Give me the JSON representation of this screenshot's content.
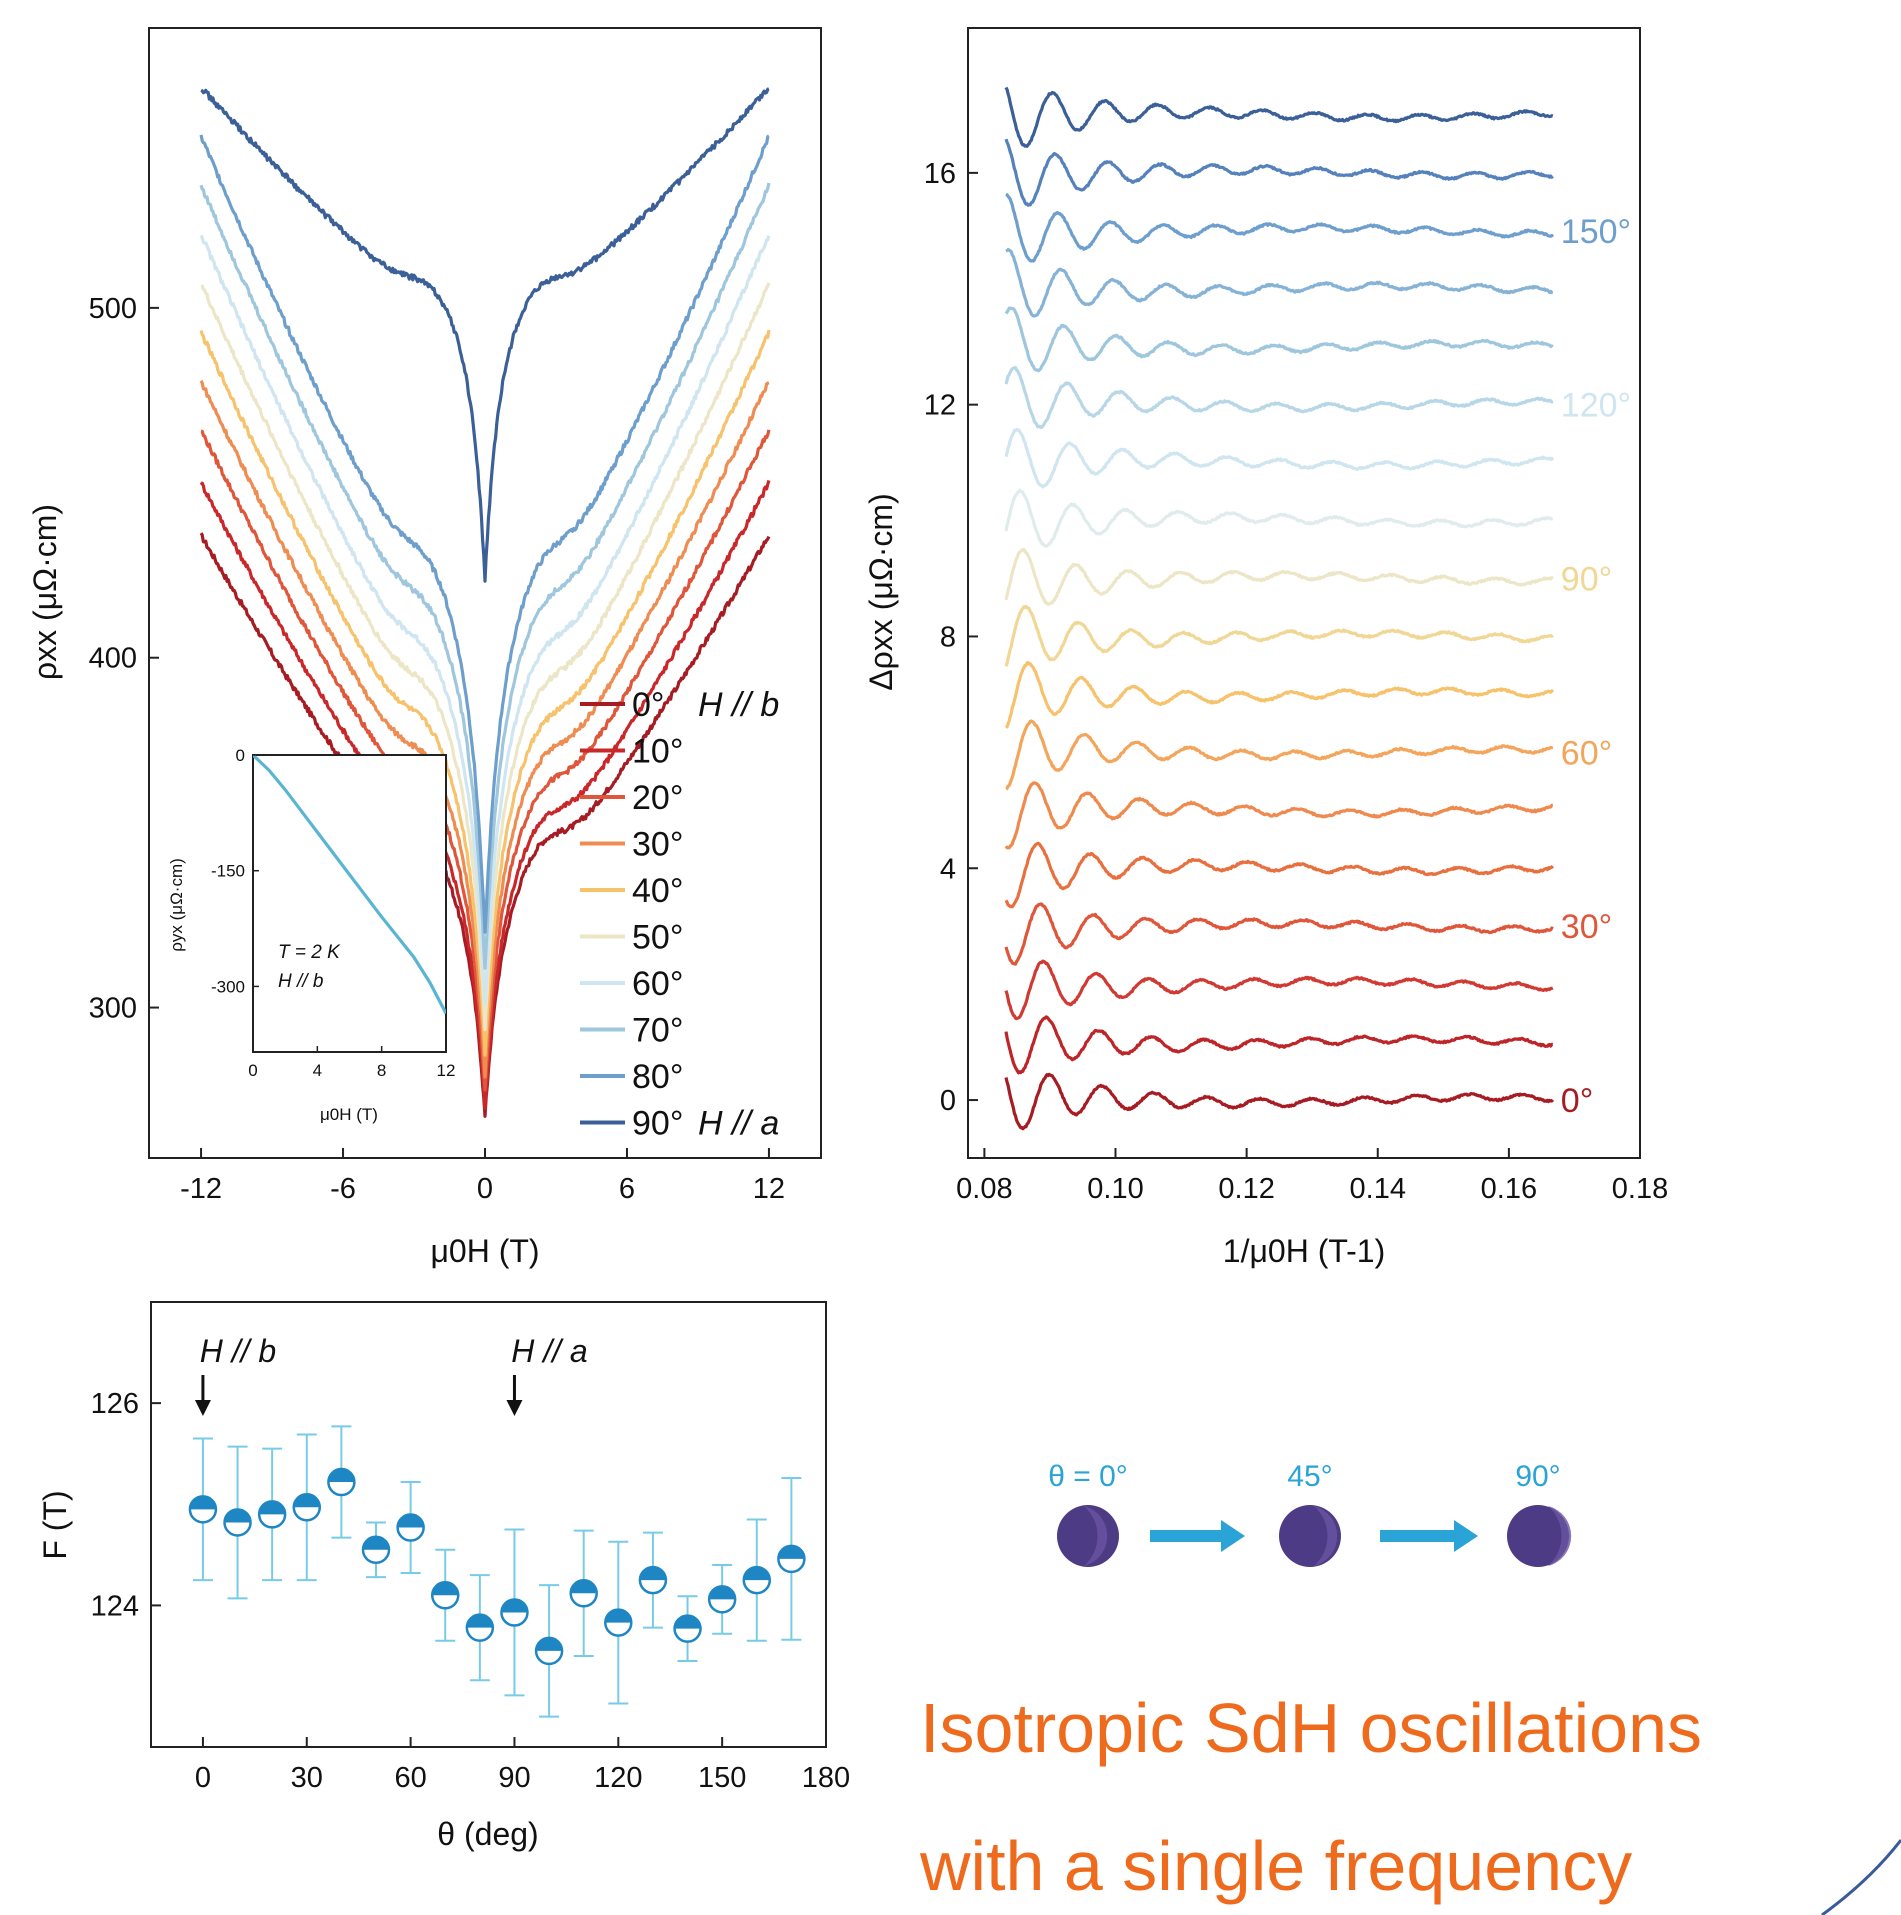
{
  "chart_data": [
    {
      "type": "line",
      "panel": "top-left",
      "xlabel": "μ0H (T)",
      "ylabel": "ρxx (μΩ·cm)",
      "xticks": [
        "-12",
        "-6",
        "0",
        "6",
        "12"
      ],
      "yticks": [
        "300",
        "400",
        "500"
      ],
      "xlim": [
        -14.2,
        14.2
      ],
      "ylim": [
        257,
        580
      ],
      "legend_position": "bottom-right",
      "series": [
        {
          "name": "0°",
          "suffix": "H // b",
          "color": "#a61c22",
          "ends": 435,
          "min": 268
        },
        {
          "name": "10°",
          "suffix": "",
          "color": "#c9272a",
          "ends": 450,
          "min": 270
        },
        {
          "name": "20°",
          "suffix": "",
          "color": "#df563a",
          "ends": 465,
          "min": 275
        },
        {
          "name": "30°",
          "suffix": "",
          "color": "#ee8c52",
          "ends": 479,
          "min": 280
        },
        {
          "name": "40°",
          "suffix": "",
          "color": "#f6c26c",
          "ends": 493,
          "min": 286
        },
        {
          "name": "50°",
          "suffix": "",
          "color": "#ece6c7",
          "ends": 507,
          "min": 293
        },
        {
          "name": "60°",
          "suffix": "",
          "color": "#cfe5ef",
          "ends": 521,
          "min": 300
        },
        {
          "name": "70°",
          "suffix": "",
          "color": "#9ec6dd",
          "ends": 535,
          "min": 310
        },
        {
          "name": "80°",
          "suffix": "",
          "color": "#6e9fcc",
          "ends": 549,
          "min": 320
        },
        {
          "name": "90°",
          "suffix": "H // a",
          "color": "#3b6098",
          "ends": 563,
          "min": 422
        }
      ],
      "inset": {
        "type": "line",
        "xlabel": "μ0H (T)",
        "ylabel": "ρyx (μΩ·cm)",
        "xticks": [
          "0",
          "4",
          "8",
          "12"
        ],
        "yticks": [
          "0",
          "-150",
          "-300"
        ],
        "xlim": [
          0,
          12
        ],
        "ylim": [
          -385,
          0
        ],
        "annotation_line1": "T = 2 K",
        "annotation_line2": "H // b",
        "color": "#5ab5d3",
        "x": [
          0,
          1,
          2,
          4,
          6,
          8,
          10,
          11,
          12
        ],
        "y": [
          0,
          -20,
          -45,
          -100,
          -155,
          -210,
          -262,
          -295,
          -335
        ]
      }
    },
    {
      "type": "line",
      "panel": "top-right",
      "xlabel": "1/μ0H (T-1)",
      "ylabel": "Δρxx (μΩ·cm)",
      "xticks": [
        "0.08",
        "0.10",
        "0.12",
        "0.14",
        "0.16",
        "0.18"
      ],
      "yticks": [
        "0",
        "4",
        "8",
        "12",
        "16"
      ],
      "xlim": [
        0.0775,
        0.18
      ],
      "ylim": [
        -1,
        18.5
      ],
      "x_range": [
        0.0833,
        0.1667
      ],
      "frequency_T": 125,
      "offset_step": 1,
      "series_angles": [
        "0°",
        "10°",
        "20°",
        "30°",
        "40°",
        "50°",
        "60°",
        "70°",
        "80°",
        "90°",
        "100°",
        "110°",
        "120°",
        "130°",
        "140°",
        "150°",
        "160°",
        "170°"
      ],
      "series_colors": [
        "#a61c22",
        "#bd2528",
        "#d03a33",
        "#df563a",
        "#e8703f",
        "#ef8a4f",
        "#f3a55c",
        "#f6c26c",
        "#f1d796",
        "#ece6c7",
        "#e0ecec",
        "#cfe5ef",
        "#b7d7e7",
        "#9ec6dd",
        "#86b3d5",
        "#6e9fcc",
        "#5582bb",
        "#3b6098"
      ],
      "angle_labels": [
        {
          "text": "0°",
          "series": 0,
          "color": "#a61c22"
        },
        {
          "text": "30°",
          "series": 3,
          "color": "#df563a"
        },
        {
          "text": "60°",
          "series": 6,
          "color": "#f3a55c"
        },
        {
          "text": "90°",
          "series": 9,
          "color": "#f1d796"
        },
        {
          "text": "120°",
          "series": 12,
          "color": "#cfe5ef"
        },
        {
          "text": "150°",
          "series": 15,
          "color": "#6e9fcc"
        }
      ]
    },
    {
      "type": "scatter",
      "panel": "bottom-left",
      "xlabel": "θ (deg)",
      "ylabel": "F (T)",
      "xticks": [
        "0",
        "30",
        "60",
        "90",
        "120",
        "150",
        "180"
      ],
      "yticks": [
        "124",
        "126"
      ],
      "xlim": [
        -15,
        180
      ],
      "ylim": [
        122.6,
        127.0
      ],
      "marker_color": "#1f86c4",
      "errorbar_color": "#78cbe6",
      "annotations": [
        {
          "text": "H // b",
          "x": 0
        },
        {
          "text": "H // a",
          "x": 90
        }
      ],
      "x": [
        0,
        10,
        20,
        30,
        40,
        50,
        60,
        70,
        80,
        90,
        100,
        110,
        120,
        130,
        140,
        150,
        160,
        170
      ],
      "y": [
        124.95,
        124.82,
        124.9,
        124.97,
        125.22,
        124.55,
        124.77,
        124.1,
        123.78,
        123.93,
        123.55,
        124.12,
        123.83,
        124.25,
        123.77,
        124.06,
        124.25,
        124.46
      ],
      "yerr": [
        0.7,
        0.75,
        0.65,
        0.72,
        0.55,
        0.27,
        0.45,
        0.45,
        0.52,
        0.82,
        0.65,
        0.62,
        0.8,
        0.47,
        0.32,
        0.34,
        0.6,
        0.8
      ]
    }
  ],
  "schematic": {
    "labels": [
      "θ = 0°",
      "45°",
      "90°"
    ],
    "sphere_color": "#4e3b85",
    "arrow_color": "#2aa3d6"
  },
  "callout": {
    "line1": "Isotropic SdH oscillations",
    "line2": "with a single frequency",
    "color": "#ee6a1c"
  }
}
